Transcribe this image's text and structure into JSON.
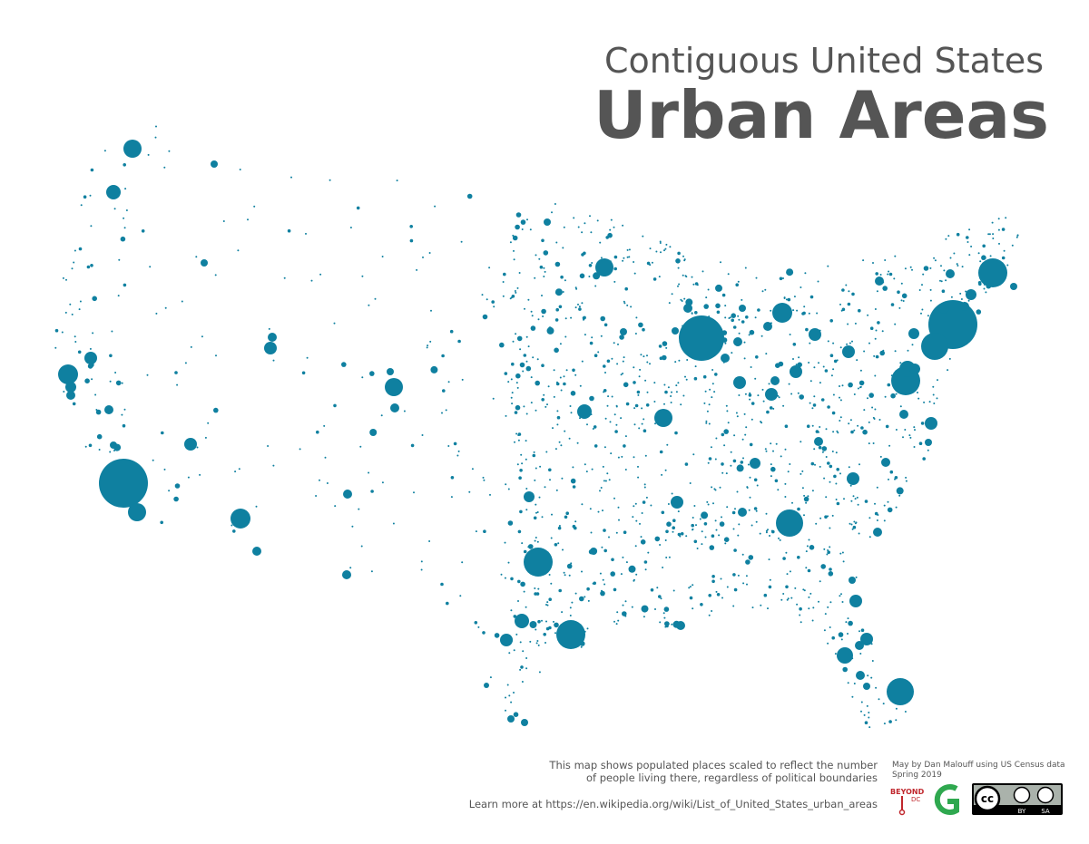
{
  "header": {
    "subtitle": "Contiguous United States",
    "title": "Urban Areas"
  },
  "footer": {
    "description": [
      "This map shows populated places scaled to reflect the number",
      "of people living there, regardless of political boundaries"
    ],
    "link": "Learn more at https://en.wikipedia.org/wiki/List_of_United_States_urban_areas",
    "credit": [
      "May by Dan Malouff using US Census data",
      "Spring 2019"
    ],
    "logos": {
      "beyond_dc": [
        "BEYOND",
        "DC"
      ],
      "license": [
        "cc",
        "BY",
        "SA"
      ]
    }
  }
}
